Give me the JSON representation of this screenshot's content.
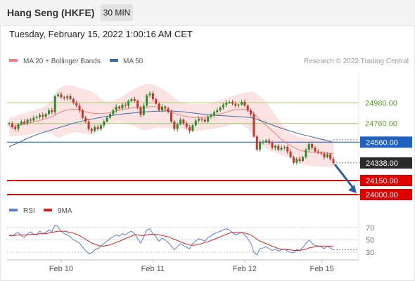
{
  "header": {
    "title": "Hang Seng (HKFE)",
    "interval": "30 MIN",
    "datetime": "Tuesday, February 15, 2022 1:00:16 AM CET"
  },
  "copyright": "Research © 2022 Trading Central",
  "colors": {
    "bollinger": "#f08080",
    "ma50": "#3a6ea5",
    "candle_up": "#2e8b2e",
    "candle_down": "#c0392b",
    "rsi": "#5b7fd6",
    "rsi_ma": "#e02020",
    "resistance_line": "#9ccc65",
    "pivot": "#2060c0",
    "support": "#e00000",
    "last": "#2b2b2b",
    "arrow": "#2f5fa0"
  },
  "chart_data": [
    {
      "type": "candlestick",
      "legend": [
        {
          "name": "MA 20 + Bollinger Bands",
          "color": "#f08080"
        },
        {
          "name": "MA 50",
          "color": "#3a6ea5"
        }
      ],
      "x_labels": [
        "Feb 10",
        "Feb 11",
        "Feb 12",
        "Feb 15"
      ],
      "ylim": [
        23940,
        25290
      ],
      "price_levels": [
        {
          "label": "24980.00",
          "value": 24980,
          "kind": "resistance"
        },
        {
          "label": "24760.00",
          "value": 24760,
          "kind": "resistance"
        },
        {
          "label": "24560.00",
          "value": 24560,
          "kind": "pivot"
        },
        {
          "label": "24338.00",
          "value": 24338,
          "kind": "last"
        },
        {
          "label": "24150.00",
          "value": 24150,
          "kind": "support"
        },
        {
          "label": "24000.00",
          "value": 24000,
          "kind": "support"
        }
      ],
      "close": [
        24760,
        24720,
        24700,
        24750,
        24780,
        24760,
        24800,
        24790,
        24820,
        24830,
        24850,
        24830,
        24860,
        24900,
        24880,
        25050,
        25070,
        25040,
        25030,
        25050,
        25020,
        24980,
        24950,
        24900,
        24820,
        24780,
        24700,
        24680,
        24720,
        24700,
        24740,
        24780,
        24820,
        24860,
        24900,
        24940,
        24920,
        24960,
        24950,
        25000,
        25020,
        25000,
        24930,
        24850,
        24950,
        25060,
        25080,
        25020,
        24970,
        24900,
        24940,
        24920,
        24880,
        24780,
        24700,
        24750,
        24800,
        24760,
        24720,
        24680,
        24740,
        24790,
        24810,
        24800,
        24780,
        24830,
        24850,
        24880,
        24900,
        24930,
        24960,
        24980,
        24990,
        24970,
        24950,
        24960,
        24990,
        24950,
        24900,
        24860,
        24620,
        24480,
        24560,
        24560,
        24580,
        24550,
        24500,
        24520,
        24480,
        24500,
        24510,
        24460,
        24400,
        24340,
        24380,
        24360,
        24400,
        24480,
        24540,
        24500,
        24460,
        24450,
        24440,
        24400,
        24430,
        24380,
        24338
      ],
      "ma20": [
        24720,
        24725,
        24730,
        24738,
        24745,
        24752,
        24760,
        24768,
        24776,
        24784,
        24792,
        24800,
        24810,
        24820,
        24832,
        24850,
        24868,
        24882,
        24894,
        24904,
        24910,
        24912,
        24908,
        24900,
        24892,
        24884,
        24876,
        24870,
        24866,
        24864,
        24864,
        24866,
        24870,
        24876,
        24884,
        24892,
        24900,
        24908,
        24914,
        24920,
        24925,
        24930,
        24932,
        24930,
        24928,
        24932,
        24938,
        24940,
        24938,
        24932,
        24922,
        24910,
        24898,
        24884,
        24870,
        24858,
        24848,
        24840,
        24834,
        24828,
        24824,
        24822,
        24822,
        24824,
        24828,
        24832,
        24838,
        24846,
        24854,
        24862,
        24870,
        24880,
        24890,
        24900,
        24906,
        24910,
        24912,
        24908,
        24898,
        24884,
        24860,
        24830,
        24800,
        24770,
        24740,
        24710,
        24680,
        24650,
        24620,
        24590,
        24565,
        24545,
        24525,
        24505,
        24490,
        24475,
        24465,
        24458,
        24455,
        24452,
        24450,
        24448,
        24446,
        24444,
        24442,
        24440,
        24438
      ],
      "bb_upper": [
        24820,
        24830,
        24840,
        24850,
        24860,
        24870,
        24880,
        24890,
        24900,
        24910,
        24920,
        24930,
        24950,
        24980,
        25010,
        25080,
        25130,
        25150,
        25160,
        25165,
        25165,
        25160,
        25150,
        25140,
        25130,
        25120,
        25110,
        25100,
        25080,
        25050,
        25020,
        25000,
        24990,
        24995,
        25005,
        25015,
        25030,
        25050,
        25070,
        25090,
        25110,
        25130,
        25150,
        25160,
        25170,
        25180,
        25180,
        25175,
        25165,
        25150,
        25130,
        25110,
        25090,
        25060,
        25030,
        25010,
        24990,
        24980,
        24975,
        24970,
        24968,
        24966,
        24965,
        24965,
        24966,
        24970,
        24980,
        24990,
        25000,
        25010,
        25020,
        25030,
        25040,
        25050,
        25060,
        25070,
        25080,
        25090,
        25095,
        25100,
        25090,
        25070,
        25050,
        25020,
        24990,
        24950,
        24900,
        24850,
        24800,
        24760,
        24720,
        24690,
        24660,
        24640,
        24625,
        24615,
        24610,
        24606,
        24603,
        24600,
        24598,
        24596,
        24594,
        24592,
        24590,
        24588,
        24586
      ],
      "bb_lower": [
        24620,
        24620,
        24620,
        24626,
        24630,
        24634,
        24640,
        24646,
        24652,
        24658,
        24664,
        24670,
        24670,
        24660,
        24654,
        24620,
        24606,
        24614,
        24628,
        24643,
        24655,
        24664,
        24666,
        24660,
        24654,
        24648,
        24642,
        24640,
        24652,
        24678,
        24708,
        24732,
        24750,
        24757,
        24763,
        24769,
        24770,
        24766,
        24758,
        24750,
        24740,
        24730,
        24714,
        24700,
        24686,
        24684,
        24696,
        24705,
        24711,
        24714,
        24714,
        24710,
        24706,
        24708,
        24710,
        24706,
        24706,
        24700,
        24693,
        24686,
        24680,
        24678,
        24679,
        24683,
        24690,
        24694,
        24696,
        24702,
        24708,
        24714,
        24720,
        24730,
        24740,
        24750,
        24752,
        24750,
        24744,
        24726,
        24701,
        24668,
        24630,
        24590,
        24550,
        24520,
        24490,
        24470,
        24460,
        24450,
        24440,
        24420,
        24410,
        24400,
        24390,
        24370,
        24355,
        24335,
        24320,
        24310,
        24307,
        24304,
        24302,
        24300,
        24298,
        24296,
        24294,
        24292,
        24290
      ],
      "ma50": [
        24510,
        24525,
        24540,
        24555,
        24570,
        24585,
        24600,
        24615,
        24628,
        24640,
        24652,
        24662,
        24672,
        24682,
        24692,
        24702,
        24712,
        24722,
        24732,
        24742,
        24752,
        24762,
        24770,
        24778,
        24786,
        24794,
        24800,
        24806,
        24812,
        24818,
        24824,
        24830,
        24836,
        24842,
        24848,
        24852,
        24856,
        24860,
        24864,
        24867,
        24870,
        24873,
        24876,
        24879,
        24882,
        24884,
        24886,
        24888,
        24890,
        24891,
        24892,
        24893,
        24893,
        24892,
        24890,
        24888,
        24886,
        24884,
        24880,
        24876,
        24872,
        24868,
        24864,
        24860,
        24856,
        24853,
        24850,
        24848,
        24846,
        24844,
        24842,
        24840,
        24838,
        24836,
        24834,
        24832,
        24830,
        24828,
        24826,
        24822,
        24814,
        24804,
        24792,
        24780,
        24768,
        24756,
        24744,
        24732,
        24720,
        24708,
        24698,
        24688,
        24678,
        24668,
        24658,
        24648,
        24640,
        24632,
        24624,
        24616,
        24608,
        24600,
        24592,
        24584,
        24576,
        24568,
        24560
      ]
    },
    {
      "type": "line",
      "legend": [
        {
          "name": "RSI",
          "color": "#5b7fd6"
        },
        {
          "name": "9MA",
          "color": "#e02020"
        }
      ],
      "yticks": [
        "70",
        "50",
        "30"
      ],
      "ylim": [
        20,
        80
      ],
      "rsi": [
        58,
        56,
        60,
        62,
        57,
        54,
        60,
        63,
        59,
        58,
        64,
        60,
        62,
        66,
        63,
        74,
        71,
        64,
        60,
        58,
        55,
        50,
        48,
        45,
        38,
        33,
        28,
        29,
        34,
        36,
        40,
        44,
        48,
        52,
        55,
        58,
        56,
        60,
        58,
        62,
        64,
        60,
        52,
        45,
        55,
        66,
        68,
        60,
        55,
        48,
        53,
        50,
        46,
        40,
        34,
        39,
        44,
        41,
        38,
        36,
        44,
        48,
        52,
        50,
        48,
        54,
        56,
        60,
        62,
        64,
        66,
        68,
        66,
        62,
        58,
        60,
        62,
        58,
        52,
        45,
        30,
        26,
        36,
        37,
        39,
        36,
        33,
        35,
        32,
        34,
        35,
        32,
        30,
        29,
        35,
        33,
        38,
        44,
        50,
        45,
        41,
        40,
        39,
        36,
        40,
        37,
        34
      ],
      "rsi_ma": [
        57,
        57,
        57,
        58,
        58,
        58,
        58,
        59,
        59,
        59,
        60,
        60,
        60,
        61,
        62,
        63,
        64,
        64,
        64,
        63,
        62,
        61,
        59,
        57,
        54,
        51,
        48,
        45,
        43,
        41,
        40,
        40,
        41,
        42,
        44,
        46,
        48,
        50,
        52,
        54,
        56,
        58,
        58,
        57,
        57,
        58,
        59,
        59,
        59,
        58,
        57,
        56,
        55,
        53,
        51,
        49,
        47,
        45,
        43,
        42,
        41,
        42,
        43,
        44,
        46,
        47,
        49,
        51,
        53,
        55,
        57,
        59,
        61,
        62,
        62,
        62,
        62,
        61,
        60,
        58,
        55,
        51,
        48,
        46,
        44,
        42,
        40,
        38,
        36,
        35,
        35,
        34,
        34,
        33,
        33,
        33,
        34,
        35,
        37,
        38,
        39,
        40,
        40,
        40,
        40,
        40,
        39
      ]
    }
  ]
}
